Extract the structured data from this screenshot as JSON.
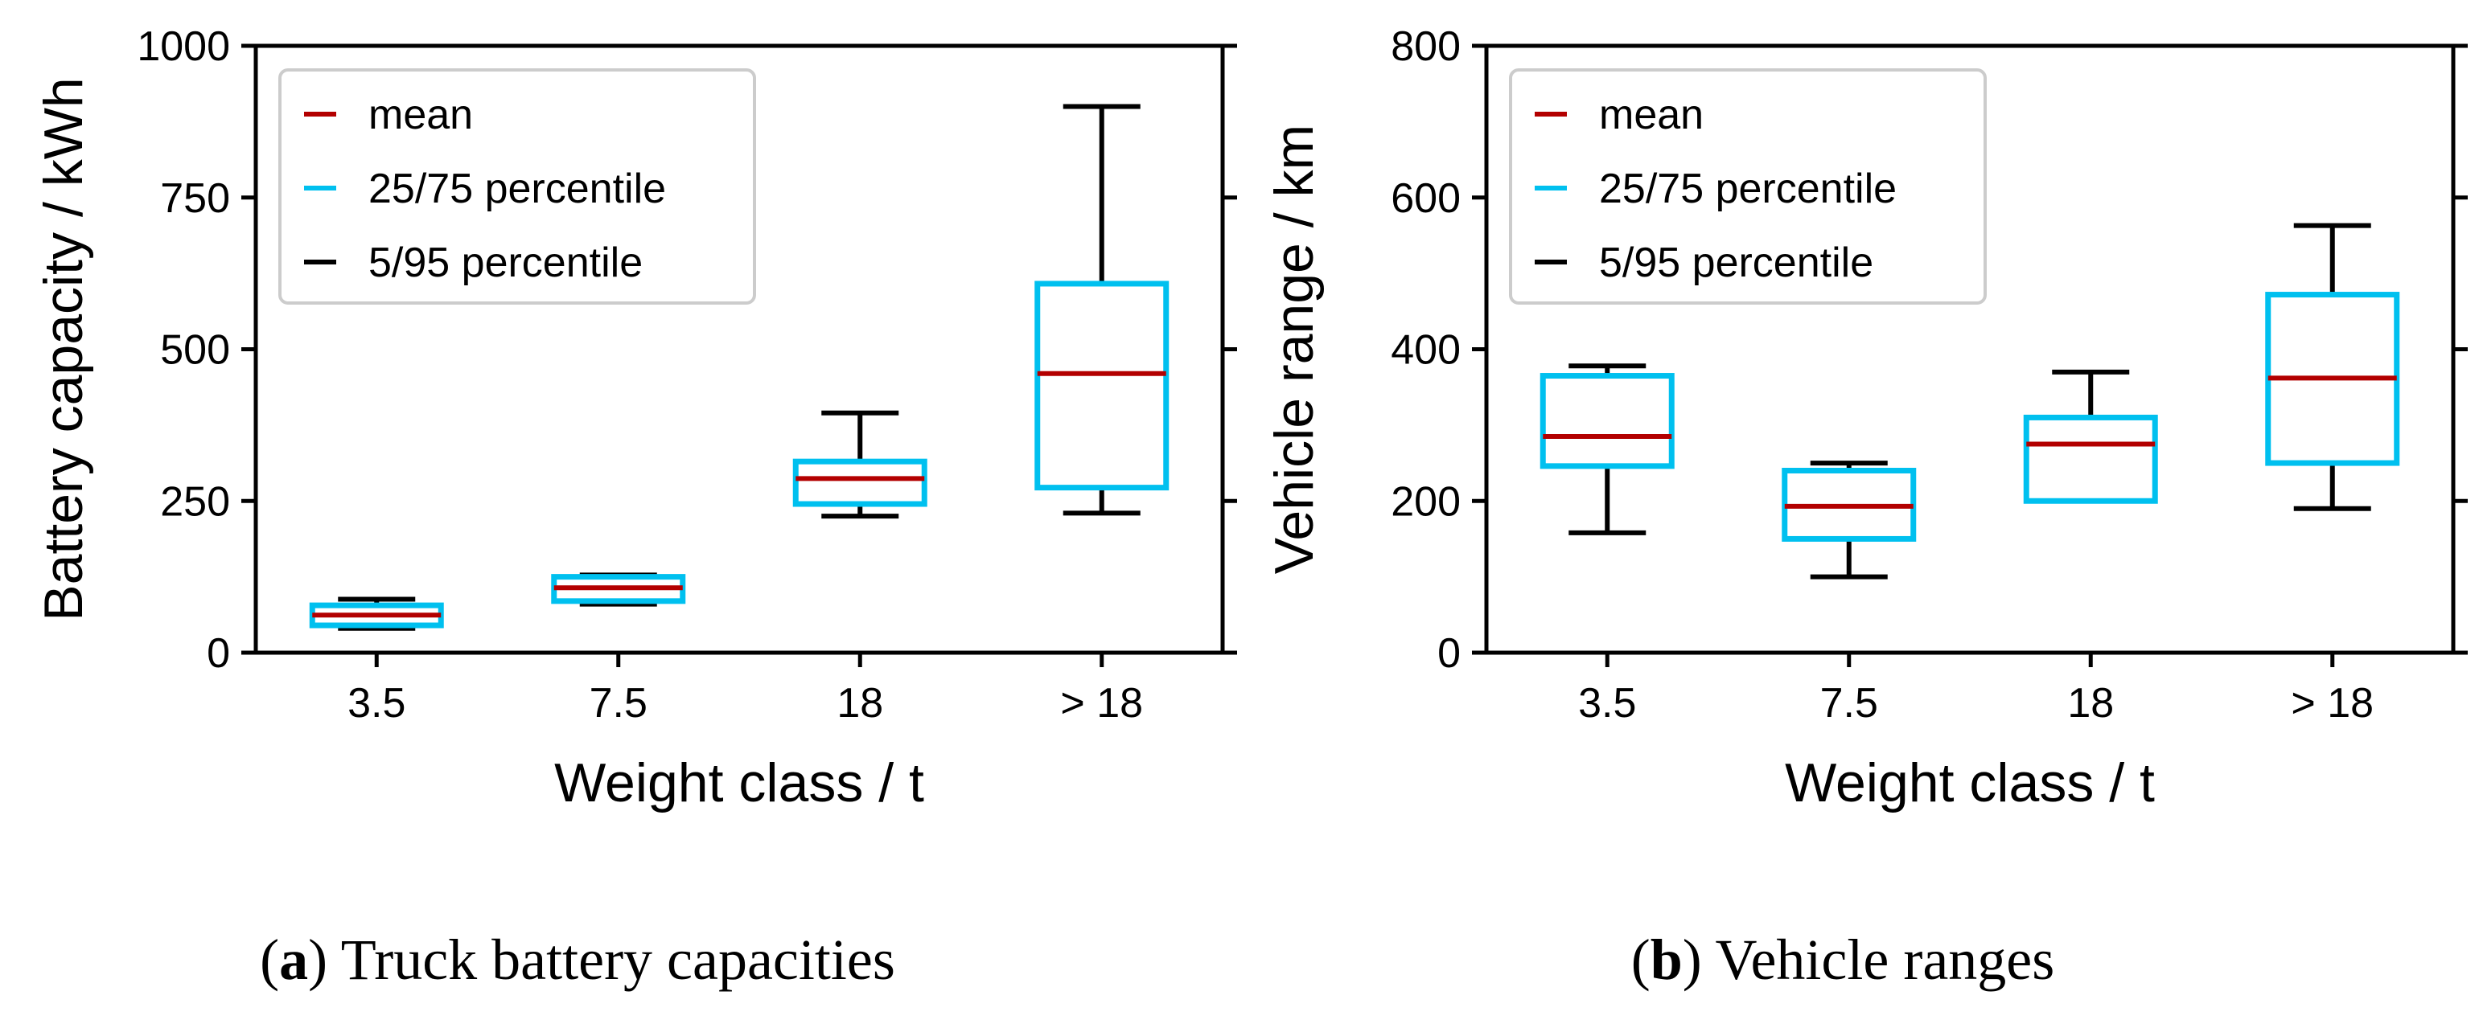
{
  "colors": {
    "mean": "#b30000",
    "quartile": "#00c0ef",
    "whisker": "#000000",
    "frame": "#000000",
    "legend_border": "#cccccc"
  },
  "chart_data": [
    {
      "type": "box",
      "title": "",
      "xlabel": "Weight class / t",
      "ylabel": "Battery capacity / kWh",
      "ylim": [
        0,
        1000
      ],
      "yticks": [
        "0",
        "250",
        "500",
        "750",
        "1000"
      ],
      "ytick_values": [
        0,
        250,
        500,
        750,
        1000
      ],
      "categories": [
        "3.5",
        "7.5",
        "18",
        "> 18"
      ],
      "legend": {
        "placement": "top-left",
        "entries": [
          "mean",
          "25/75 percentile",
          "5/95 percentile"
        ]
      },
      "boxes": [
        {
          "p5": 40,
          "p25": 45,
          "mean": 62,
          "p75": 78,
          "p95": 88
        },
        {
          "p5": 80,
          "p25": 85,
          "mean": 107,
          "p75": 125,
          "p95": 128
        },
        {
          "p5": 225,
          "p25": 245,
          "mean": 287,
          "p75": 315,
          "p95": 395
        },
        {
          "p5": 230,
          "p25": 272,
          "mean": 460,
          "p75": 608,
          "p95": 900
        }
      ],
      "caption_letter": "a",
      "caption_text": "Truck battery capacities"
    },
    {
      "type": "box",
      "title": "",
      "xlabel": "Weight class / t",
      "ylabel": "Vehicle range / km",
      "ylim": [
        0,
        800
      ],
      "yticks": [
        "0",
        "200",
        "400",
        "600",
        "800"
      ],
      "ytick_values": [
        0,
        200,
        400,
        600,
        800
      ],
      "categories": [
        "3.5",
        "7.5",
        "18",
        "> 18"
      ],
      "legend": {
        "placement": "top-left",
        "entries": [
          "mean",
          "25/75 percentile",
          "5/95 percentile"
        ]
      },
      "boxes": [
        {
          "p5": 158,
          "p25": 246,
          "mean": 285,
          "p75": 365,
          "p95": 378
        },
        {
          "p5": 100,
          "p25": 150,
          "mean": 193,
          "p75": 240,
          "p95": 250
        },
        {
          "p5": 200,
          "p25": 200,
          "mean": 275,
          "p75": 310,
          "p95": 370
        },
        {
          "p5": 190,
          "p25": 250,
          "mean": 362,
          "p75": 472,
          "p95": 563
        }
      ],
      "caption_letter": "b",
      "caption_text": "Vehicle ranges"
    }
  ]
}
